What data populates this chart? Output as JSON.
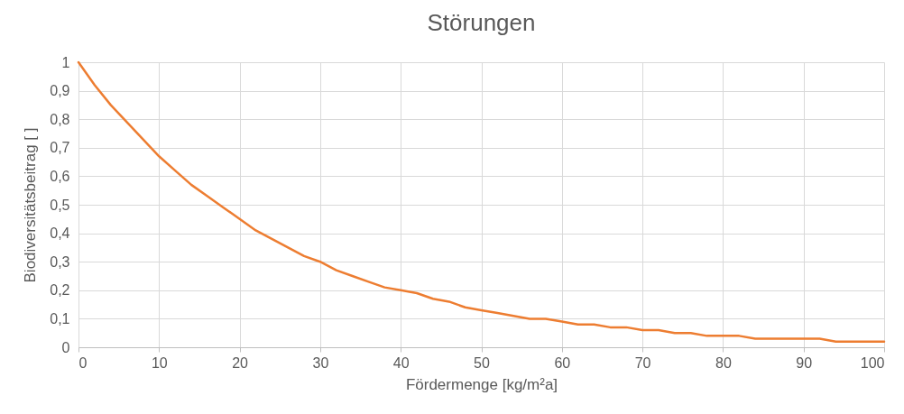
{
  "chart_data": {
    "type": "line",
    "title": "Störungen",
    "xlabel": "Fördermenge  [kg/m²a]",
    "ylabel": "Biodiversitätsbeitrag  [ ]",
    "x": [
      0,
      2,
      4,
      6,
      8,
      10,
      12,
      14,
      16,
      18,
      20,
      22,
      24,
      26,
      28,
      30,
      32,
      34,
      36,
      38,
      40,
      42,
      44,
      46,
      48,
      50,
      52,
      54,
      56,
      58,
      60,
      62,
      64,
      66,
      68,
      70,
      72,
      74,
      76,
      78,
      80,
      82,
      84,
      86,
      88,
      90,
      92,
      94,
      96,
      98,
      100
    ],
    "series": [
      {
        "color": "#ed7d31",
        "values": [
          1,
          0.92,
          0.85,
          0.79,
          0.73,
          0.67,
          0.62,
          0.57,
          0.53,
          0.49,
          0.45,
          0.41,
          0.38,
          0.35,
          0.32,
          0.3,
          0.27,
          0.25,
          0.23,
          0.21,
          0.2,
          0.19,
          0.17,
          0.16,
          0.14,
          0.13,
          0.12,
          0.11,
          0.1,
          0.1,
          0.09,
          0.08,
          0.08,
          0.07,
          0.07,
          0.06,
          0.06,
          0.05,
          0.05,
          0.04,
          0.04,
          0.04,
          0.03,
          0.03,
          0.03,
          0.03,
          0.03,
          0.02,
          0.02,
          0.02,
          0.02
        ]
      }
    ],
    "xlim": [
      0,
      100
    ],
    "xticks": [
      0,
      10,
      20,
      30,
      40,
      50,
      60,
      70,
      80,
      90,
      100
    ],
    "ylim": [
      0,
      1
    ],
    "yticks": [
      0,
      {
        "value": 0.1,
        "label": "0,1"
      },
      {
        "value": 0.2,
        "label": "0,2"
      },
      {
        "value": 0.3,
        "label": "0,3"
      },
      {
        "value": 0.4,
        "label": "0,4"
      },
      {
        "value": 0.5,
        "label": "0,5"
      },
      {
        "value": 0.6,
        "label": "0,6"
      },
      {
        "value": 0.7,
        "label": "0,7"
      },
      {
        "value": 0.8,
        "label": "0,8"
      },
      {
        "value": 0.9,
        "label": "0,9"
      },
      1
    ],
    "grid": true,
    "marker": "none",
    "line_style": "solid"
  }
}
